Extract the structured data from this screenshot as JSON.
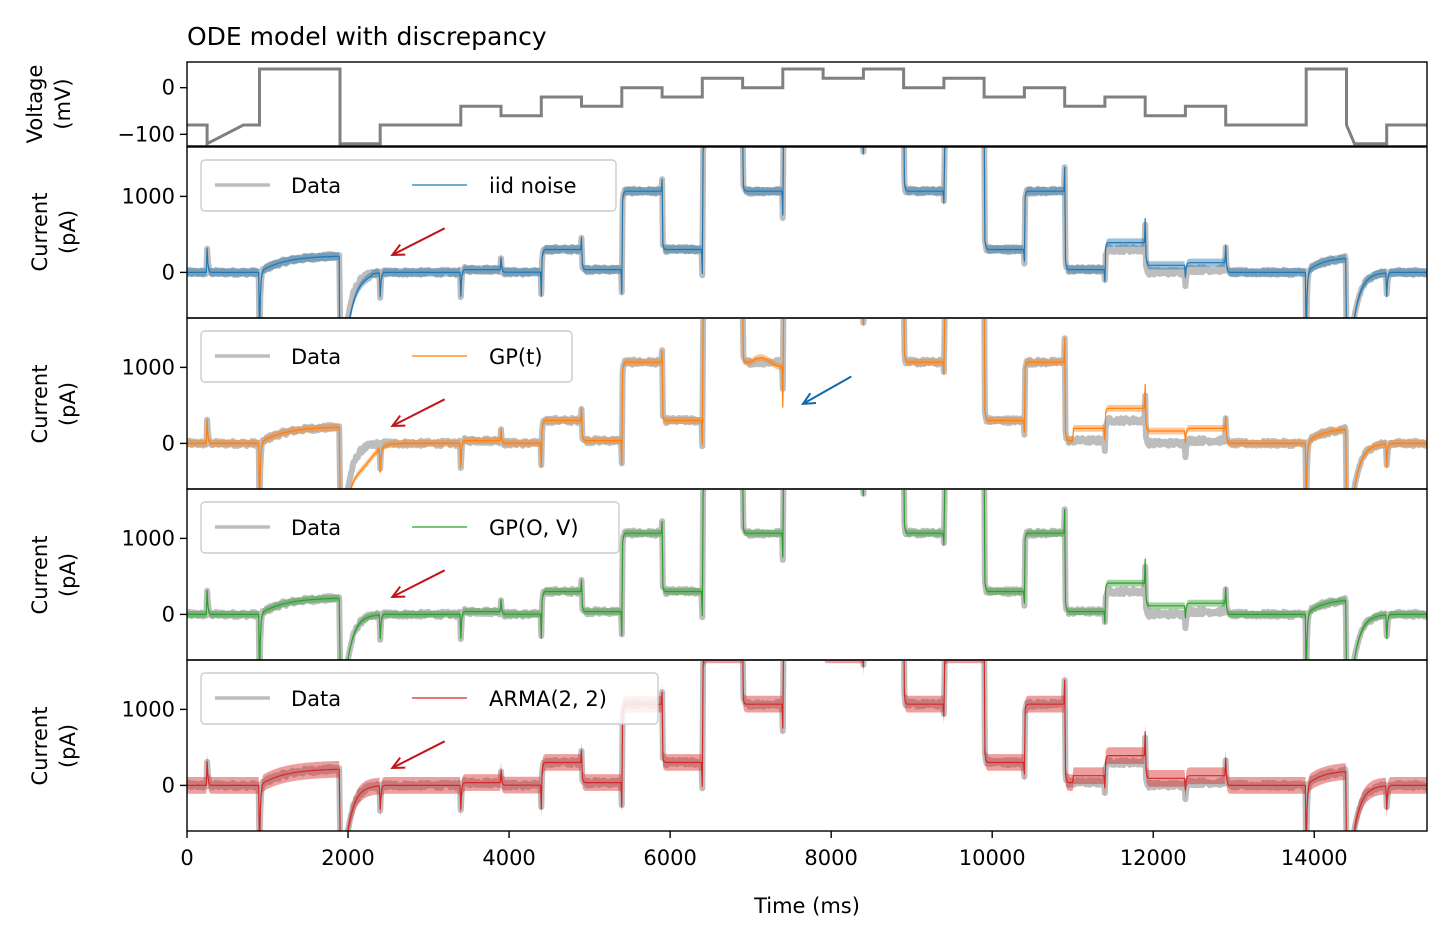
{
  "title": "ODE model with discrepancy",
  "colors": {
    "data": "#bdbdbd",
    "voltage": "#808080",
    "blue": "#1f77b4",
    "orange": "#ff7f0e",
    "green": "#2ca02c",
    "red": "#d62728",
    "arrow_red": "#c0151a",
    "arrow_blue": "#1069a8"
  },
  "chart_data": {
    "type": "line",
    "xlabel": "Time (ms)",
    "xlim": [
      0,
      15400
    ],
    "xticks": [
      0,
      2000,
      4000,
      6000,
      8000,
      10000,
      12000,
      14000
    ],
    "xtick_labels": [
      "0",
      "2000",
      "4000",
      "6000",
      "8000",
      "10000",
      "12000",
      "14000"
    ],
    "voltage_panel": {
      "ylabel_line1": "Voltage",
      "ylabel_line2": "(mV)",
      "ylim": [
        -125,
        55
      ],
      "yticks": [
        0,
        -100
      ],
      "ytick_labels": [
        "0",
        "−100"
      ],
      "protocol": [
        [
          0,
          -80
        ],
        [
          250,
          -80
        ],
        [
          250,
          -120
        ],
        [
          700,
          -80
        ],
        [
          900,
          -80
        ],
        [
          900,
          40
        ],
        [
          1900,
          40
        ],
        [
          1900,
          -120
        ],
        [
          2400,
          -120
        ],
        [
          2400,
          -80
        ],
        [
          3400,
          -80
        ],
        [
          3400,
          -40
        ],
        [
          3900,
          -40
        ],
        [
          3900,
          -60
        ],
        [
          4400,
          -60
        ],
        [
          4400,
          -20
        ],
        [
          4900,
          -20
        ],
        [
          4900,
          -40
        ],
        [
          5400,
          -40
        ],
        [
          5400,
          0
        ],
        [
          5900,
          0
        ],
        [
          5900,
          -20
        ],
        [
          6400,
          -20
        ],
        [
          6400,
          20
        ],
        [
          6900,
          20
        ],
        [
          6900,
          0
        ],
        [
          7400,
          0
        ],
        [
          7400,
          40
        ],
        [
          7900,
          40
        ],
        [
          7900,
          20
        ],
        [
          8400,
          20
        ],
        [
          8400,
          40
        ],
        [
          8900,
          40
        ],
        [
          8900,
          0
        ],
        [
          9400,
          0
        ],
        [
          9400,
          20
        ],
        [
          9900,
          20
        ],
        [
          9900,
          -20
        ],
        [
          10400,
          -20
        ],
        [
          10400,
          0
        ],
        [
          10900,
          0
        ],
        [
          10900,
          -40
        ],
        [
          11400,
          -40
        ],
        [
          11400,
          -20
        ],
        [
          11900,
          -20
        ],
        [
          11900,
          -60
        ],
        [
          12400,
          -60
        ],
        [
          12400,
          -40
        ],
        [
          12900,
          -40
        ],
        [
          12900,
          -80
        ],
        [
          13900,
          -80
        ],
        [
          13900,
          40
        ],
        [
          14400,
          40
        ],
        [
          14400,
          -80
        ],
        [
          14500,
          -120
        ],
        [
          14900,
          -120
        ],
        [
          14900,
          -80
        ],
        [
          15400,
          -80
        ]
      ]
    },
    "current_panels": {
      "ylabel_line1": "Current",
      "ylabel_line2": "(pA)",
      "ylim": [
        -600,
        1650
      ],
      "yticks": [
        0,
        1000
      ],
      "ytick_labels": [
        "0",
        "1000"
      ]
    },
    "series": [
      {
        "name": "Data",
        "legend_label": "Data"
      },
      {
        "name": "iid noise",
        "legend_label": "iid noise",
        "panel": 1,
        "band": 55
      },
      {
        "name": "GP(t)",
        "legend_label": "GP(t)",
        "panel": 2,
        "band": 45
      },
      {
        "name": "GP(O, V)",
        "legend_label": "GP(O, V)",
        "panel": 3,
        "band": 45
      },
      {
        "name": "ARMA(2, 2)",
        "legend_label": "ARMA(2, 2)",
        "panel": 4,
        "band": 110
      }
    ],
    "annotations": [
      {
        "type": "arrow",
        "panel": 1,
        "from": [
          3200,
          580
        ],
        "to": [
          2550,
          230
        ],
        "color": "arrow_red"
      },
      {
        "type": "arrow",
        "panel": 2,
        "from": [
          3200,
          580
        ],
        "to": [
          2550,
          230
        ],
        "color": "arrow_red"
      },
      {
        "type": "arrow",
        "panel": 2,
        "from": [
          8250,
          880
        ],
        "to": [
          7650,
          520
        ],
        "color": "arrow_blue"
      },
      {
        "type": "arrow",
        "panel": 3,
        "from": [
          3200,
          580
        ],
        "to": [
          2550,
          230
        ],
        "color": "arrow_red"
      },
      {
        "type": "arrow",
        "panel": 4,
        "from": [
          3200,
          580
        ],
        "to": [
          2550,
          230
        ],
        "color": "arrow_red"
      }
    ]
  }
}
